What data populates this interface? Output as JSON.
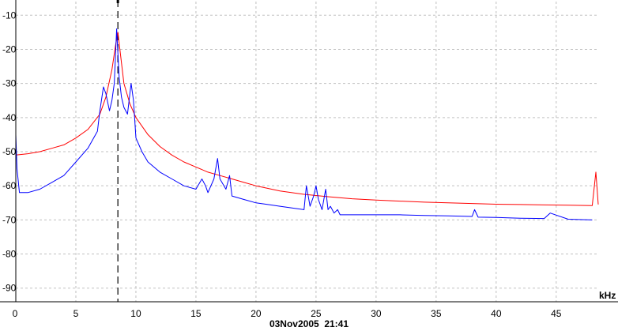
{
  "chart_data": {
    "type": "line",
    "title": "",
    "xlabel": "kHz",
    "ylabel": "",
    "xlim": [
      0,
      48.5
    ],
    "ylim": [
      -94,
      -6
    ],
    "x_ticks": [
      0,
      5,
      10,
      15,
      20,
      25,
      30,
      35,
      40,
      45
    ],
    "x_tick_labels": [
      "0",
      "5",
      "10",
      "15",
      "20",
      "25",
      "30",
      "35",
      "40",
      "45"
    ],
    "y_ticks": [
      -10,
      -20,
      -30,
      -40,
      -50,
      -60,
      -70,
      -80,
      -90
    ],
    "y_tick_labels": [
      "-10",
      "-20",
      "-30",
      "-40",
      "-50",
      "-60",
      "-70",
      "-80",
      "-90"
    ],
    "grid": true,
    "marker_line_x": 8.5,
    "colors": {
      "red_series": "#ff0000",
      "blue_series": "#0000ff",
      "grid": "#c0c0c0",
      "axis": "#000000"
    },
    "series": [
      {
        "color": "#ff0000",
        "x": [
          0,
          1,
          2,
          3,
          4,
          5,
          6,
          7,
          7.5,
          8,
          8.3,
          8.5,
          8.7,
          9,
          9.5,
          10,
          11,
          12,
          13,
          14,
          15,
          16,
          17,
          18,
          19,
          20,
          22,
          24,
          26,
          28,
          30,
          32,
          34,
          36,
          38,
          40,
          42,
          44,
          46,
          48,
          48.3,
          48.5
        ],
        "y": [
          -51,
          -50.6,
          -50,
          -49,
          -48,
          -46,
          -43.5,
          -39,
          -34,
          -26,
          -19,
          -15,
          -21,
          -30,
          -36,
          -40,
          -45,
          -48.5,
          -51,
          -53,
          -54.5,
          -56,
          -57,
          -58,
          -59,
          -60,
          -61.5,
          -62.5,
          -63.2,
          -63.8,
          -64.2,
          -64.5,
          -64.8,
          -65,
          -65.2,
          -65.4,
          -65.5,
          -65.6,
          -65.7,
          -65.8,
          -56,
          -65.5
        ]
      },
      {
        "color": "#0000ff",
        "x": [
          0,
          0.1,
          0.3,
          1,
          2,
          3,
          4,
          5,
          6,
          6.8,
          7,
          7.3,
          7.5,
          7.8,
          8,
          8.2,
          8.4,
          8.6,
          8.8,
          9,
          9.3,
          9.6,
          9.8,
          10,
          10.5,
          11,
          12,
          13,
          14,
          15,
          15.5,
          15.8,
          16,
          16.5,
          16.8,
          17,
          17.5,
          17.8,
          18,
          19,
          20,
          21,
          22,
          23,
          24,
          24.2,
          24.5,
          24.8,
          25,
          25.2,
          25.5,
          25.8,
          26,
          26.2,
          26.5,
          26.8,
          27,
          28,
          30,
          32,
          34,
          36,
          38,
          38.2,
          38.5,
          40,
          42,
          44,
          44.5,
          46,
          48
        ],
        "y": [
          -45,
          -55,
          -62,
          -62,
          -61,
          -59,
          -57,
          -53,
          -49,
          -44,
          -38,
          -31,
          -33,
          -38,
          -35,
          -30,
          -14,
          -28,
          -34,
          -37,
          -39,
          -30,
          -35,
          -46,
          -50,
          -53,
          -56,
          -58,
          -60,
          -61,
          -58,
          -60,
          -62,
          -58,
          -52,
          -58,
          -61,
          -57,
          -63,
          -64,
          -65,
          -65.5,
          -66,
          -66.5,
          -67,
          -60,
          -66,
          -63,
          -60,
          -64,
          -67,
          -61,
          -67,
          -66,
          -68,
          -67,
          -68.5,
          -68.5,
          -68.5,
          -68.5,
          -68.7,
          -68.8,
          -69,
          -67,
          -69.2,
          -69.3,
          -69.5,
          -69.6,
          -68,
          -69.8,
          -70
        ]
      }
    ]
  },
  "timestamp": "03Nov2005  21:41"
}
